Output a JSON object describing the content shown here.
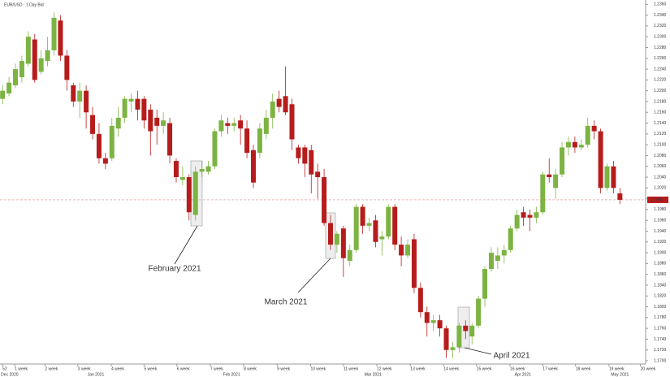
{
  "chart_data": {
    "type": "candlestick",
    "title": "EUR/USD · 1 Day Bid",
    "up_color": "#7cb342",
    "down_color": "#b71c1c",
    "open": [
      1.2185,
      1.2195,
      1.221,
      1.2225,
      1.225,
      1.2295,
      1.2235,
      1.2255,
      1.2275,
      1.233,
      1.2265,
      1.221,
      1.218,
      1.22,
      1.2155,
      1.212,
      1.2075,
      1.2075,
      1.213,
      1.215,
      1.218,
      1.2185,
      1.2185,
      1.2165,
      1.215,
      1.2135,
      1.214,
      1.207,
      1.2035,
      1.204,
      1.197,
      1.205,
      1.205,
      1.206,
      1.2125,
      1.214,
      1.2135,
      1.2145,
      1.213,
      1.209,
      1.2085,
      1.212,
      1.215,
      1.2185,
      1.219,
      1.2175,
      1.2095,
      1.2095,
      1.209,
      1.205,
      1.204,
      1.1955,
      1.1915,
      1.1945,
      1.1885,
      1.1905,
      1.1985,
      1.195,
      1.196,
      1.1925,
      1.193,
      1.1985,
      1.1915,
      1.1895,
      1.1925,
      1.1835,
      1.179,
      1.177,
      1.1775,
      1.176,
      1.172,
      1.1725,
      1.1765,
      1.1745,
      1.1765,
      1.1815,
      1.187,
      1.1885,
      1.1895,
      1.1905,
      1.1945,
      1.1975,
      1.197,
      1.1965,
      1.1975,
      1.2045,
      1.202,
      1.2045,
      1.2095,
      1.2105,
      1.2095,
      1.21,
      1.2135,
      1.2125,
      1.202,
      1.206,
      1.201
    ],
    "high": [
      1.221,
      1.2225,
      1.225,
      1.2265,
      1.231,
      1.2305,
      1.2275,
      1.23,
      1.2345,
      1.234,
      1.2275,
      1.2215,
      1.2215,
      1.221,
      1.217,
      1.214,
      1.2085,
      1.215,
      1.217,
      1.219,
      1.2195,
      1.22,
      1.219,
      1.2175,
      1.2165,
      1.216,
      1.215,
      1.2075,
      1.206,
      1.2045,
      1.206,
      1.207,
      1.207,
      1.213,
      1.2155,
      1.215,
      1.215,
      1.2155,
      1.2145,
      1.21,
      1.214,
      1.2165,
      1.2195,
      1.22,
      1.2245,
      1.2185,
      1.21,
      1.21,
      1.21,
      1.2065,
      1.2055,
      1.197,
      1.194,
      1.195,
      1.1915,
      1.199,
      1.199,
      1.1965,
      1.197,
      1.194,
      1.199,
      1.199,
      1.193,
      1.1925,
      1.1935,
      1.1845,
      1.18,
      1.1785,
      1.1785,
      1.1765,
      1.1735,
      1.177,
      1.1775,
      1.177,
      1.182,
      1.1875,
      1.191,
      1.191,
      1.1915,
      1.195,
      1.198,
      1.1985,
      1.198,
      1.1985,
      1.205,
      1.2075,
      1.2055,
      1.2105,
      1.2115,
      1.2115,
      1.211,
      1.215,
      1.2145,
      1.213,
      1.2065,
      1.207,
      1.202
    ],
    "low": [
      1.2175,
      1.219,
      1.2205,
      1.2215,
      1.2245,
      1.2215,
      1.223,
      1.2245,
      1.2265,
      1.2255,
      1.22,
      1.217,
      1.215,
      1.213,
      1.211,
      1.2065,
      1.2055,
      1.207,
      1.2115,
      1.214,
      1.216,
      1.2145,
      1.213,
      1.208,
      1.21,
      1.212,
      1.2065,
      1.203,
      1.2025,
      1.196,
      1.196,
      1.204,
      1.2045,
      1.2055,
      1.2115,
      1.212,
      1.2125,
      1.21,
      1.2075,
      1.202,
      1.2075,
      1.211,
      1.213,
      1.216,
      1.2155,
      1.209,
      1.2065,
      1.204,
      1.201,
      1.2,
      1.195,
      1.1905,
      1.19,
      1.1855,
      1.1875,
      1.19,
      1.1935,
      1.194,
      1.191,
      1.1895,
      1.1925,
      1.1905,
      1.1875,
      1.189,
      1.1825,
      1.178,
      1.1745,
      1.1755,
      1.1745,
      1.1705,
      1.1705,
      1.1715,
      1.174,
      1.173,
      1.176,
      1.18,
      1.1865,
      1.187,
      1.188,
      1.19,
      1.194,
      1.195,
      1.194,
      1.1955,
      1.197,
      1.203,
      1.2,
      1.204,
      1.208,
      1.2085,
      1.209,
      1.2095,
      1.211,
      1.201,
      1.2015,
      1.201,
      1.199
    ],
    "close": [
      1.22,
      1.2215,
      1.224,
      1.2255,
      1.23,
      1.222,
      1.226,
      1.2275,
      1.2335,
      1.2265,
      1.222,
      1.218,
      1.22,
      1.216,
      1.212,
      1.2075,
      1.2065,
      1.2135,
      1.215,
      1.2185,
      1.2185,
      1.2165,
      1.2145,
      1.2125,
      1.2135,
      1.2145,
      1.208,
      1.204,
      1.204,
      1.1975,
      1.205,
      1.2055,
      1.206,
      1.2125,
      1.2145,
      1.2135,
      1.214,
      1.213,
      1.2085,
      1.203,
      1.213,
      1.215,
      1.218,
      1.217,
      1.216,
      1.211,
      1.2075,
      1.2065,
      1.2045,
      1.204,
      1.1955,
      1.1915,
      1.1935,
      1.189,
      1.1905,
      1.1985,
      1.195,
      1.1955,
      1.192,
      1.193,
      1.1985,
      1.1915,
      1.1895,
      1.1915,
      1.1835,
      1.179,
      1.177,
      1.1775,
      1.176,
      1.172,
      1.1725,
      1.1765,
      1.1755,
      1.1765,
      1.1815,
      1.187,
      1.19,
      1.1895,
      1.1905,
      1.1945,
      1.197,
      1.1965,
      1.1965,
      1.1975,
      1.2045,
      1.204,
      1.2045,
      1.2095,
      1.2105,
      1.2095,
      1.21,
      1.2135,
      1.2125,
      1.202,
      1.206,
      1.202,
      1.1998
    ],
    "last_price": 1.1998,
    "ylim": [
      1.1694,
      1.2368
    ],
    "yticks": [
      {
        "value": 1.236,
        "label": "1.2360"
      },
      {
        "value": 1.234,
        "label": "1.2340"
      },
      {
        "value": 1.232,
        "label": "1.2320"
      },
      {
        "value": 1.23,
        "label": "1.2300"
      },
      {
        "value": 1.228,
        "label": "1.2280"
      },
      {
        "value": 1.226,
        "label": "1.2260"
      },
      {
        "value": 1.224,
        "label": "1.2240"
      },
      {
        "value": 1.222,
        "label": "1.2220"
      },
      {
        "value": 1.22,
        "label": "1.2200"
      },
      {
        "value": 1.218,
        "label": "1.2180"
      },
      {
        "value": 1.216,
        "label": "1.2160"
      },
      {
        "value": 1.214,
        "label": "1.2140"
      },
      {
        "value": 1.212,
        "label": "1.2120"
      },
      {
        "value": 1.21,
        "label": "1.2100"
      },
      {
        "value": 1.208,
        "label": "1.2080"
      },
      {
        "value": 1.206,
        "label": "1.2060"
      },
      {
        "value": 1.204,
        "label": "1.2040"
      },
      {
        "value": 1.202,
        "label": "1.2020"
      },
      {
        "value": 1.2,
        "label": "1.2000"
      },
      {
        "value": 1.198,
        "label": "1.1980"
      },
      {
        "value": 1.196,
        "label": "1.1960"
      },
      {
        "value": 1.194,
        "label": "1.1940"
      },
      {
        "value": 1.192,
        "label": "1.1920"
      },
      {
        "value": 1.19,
        "label": "1.1900"
      },
      {
        "value": 1.188,
        "label": "1.1880"
      },
      {
        "value": 1.186,
        "label": "1.1860"
      },
      {
        "value": 1.184,
        "label": "1.1840"
      },
      {
        "value": 1.182,
        "label": "1.1820"
      },
      {
        "value": 1.18,
        "label": "1.1800"
      },
      {
        "value": 1.178,
        "label": "1.1780"
      },
      {
        "value": 1.176,
        "label": "1.1760"
      },
      {
        "value": 1.174,
        "label": "1.1740"
      },
      {
        "value": 1.172,
        "label": "1.1720"
      },
      {
        "value": 1.17,
        "label": "1.1700"
      }
    ],
    "xlim": [
      -0.4,
      100
    ],
    "xticks": [
      {
        "value": 0,
        "label": "52"
      },
      {
        "value": 1.9,
        "label": "1 week"
      },
      {
        "value": 6.6,
        "label": "2 week"
      },
      {
        "value": 11.7,
        "label": "3 week"
      },
      {
        "value": 16.9,
        "label": "4 week"
      },
      {
        "value": 22,
        "label": "5 week"
      },
      {
        "value": 27.1,
        "label": "6 week"
      },
      {
        "value": 32.3,
        "label": "7 week"
      },
      {
        "value": 37.5,
        "label": "8 week"
      },
      {
        "value": 42.7,
        "label": "9 week"
      },
      {
        "value": 47.9,
        "label": "10 week"
      },
      {
        "value": 53,
        "label": "11 week"
      },
      {
        "value": 58.2,
        "label": "12 week"
      },
      {
        "value": 63.4,
        "label": "13 week"
      },
      {
        "value": 68.6,
        "label": "14 week"
      },
      {
        "value": 73.7,
        "label": "15 week"
      },
      {
        "value": 78.9,
        "label": "16 week"
      },
      {
        "value": 84,
        "label": "17 week"
      },
      {
        "value": 89.1,
        "label": "18 week"
      },
      {
        "value": 94.3,
        "label": "19 week"
      },
      {
        "value": 99.2,
        "label": "20 week"
      }
    ],
    "month_ticks": [
      {
        "value": 1.1,
        "label": "Dec 2020"
      },
      {
        "value": 14.5,
        "label": "Jan 2021"
      },
      {
        "value": 35.6,
        "label": "Feb 2021"
      },
      {
        "value": 57.6,
        "label": "Mar 2021"
      },
      {
        "value": 80.9,
        "label": "Apr 2021"
      },
      {
        "value": 96,
        "label": "May 2021"
      }
    ],
    "annotations": [
      {
        "text": "February 2021"
      },
      {
        "text": "March 2021"
      },
      {
        "text": "April 2021"
      }
    ]
  }
}
